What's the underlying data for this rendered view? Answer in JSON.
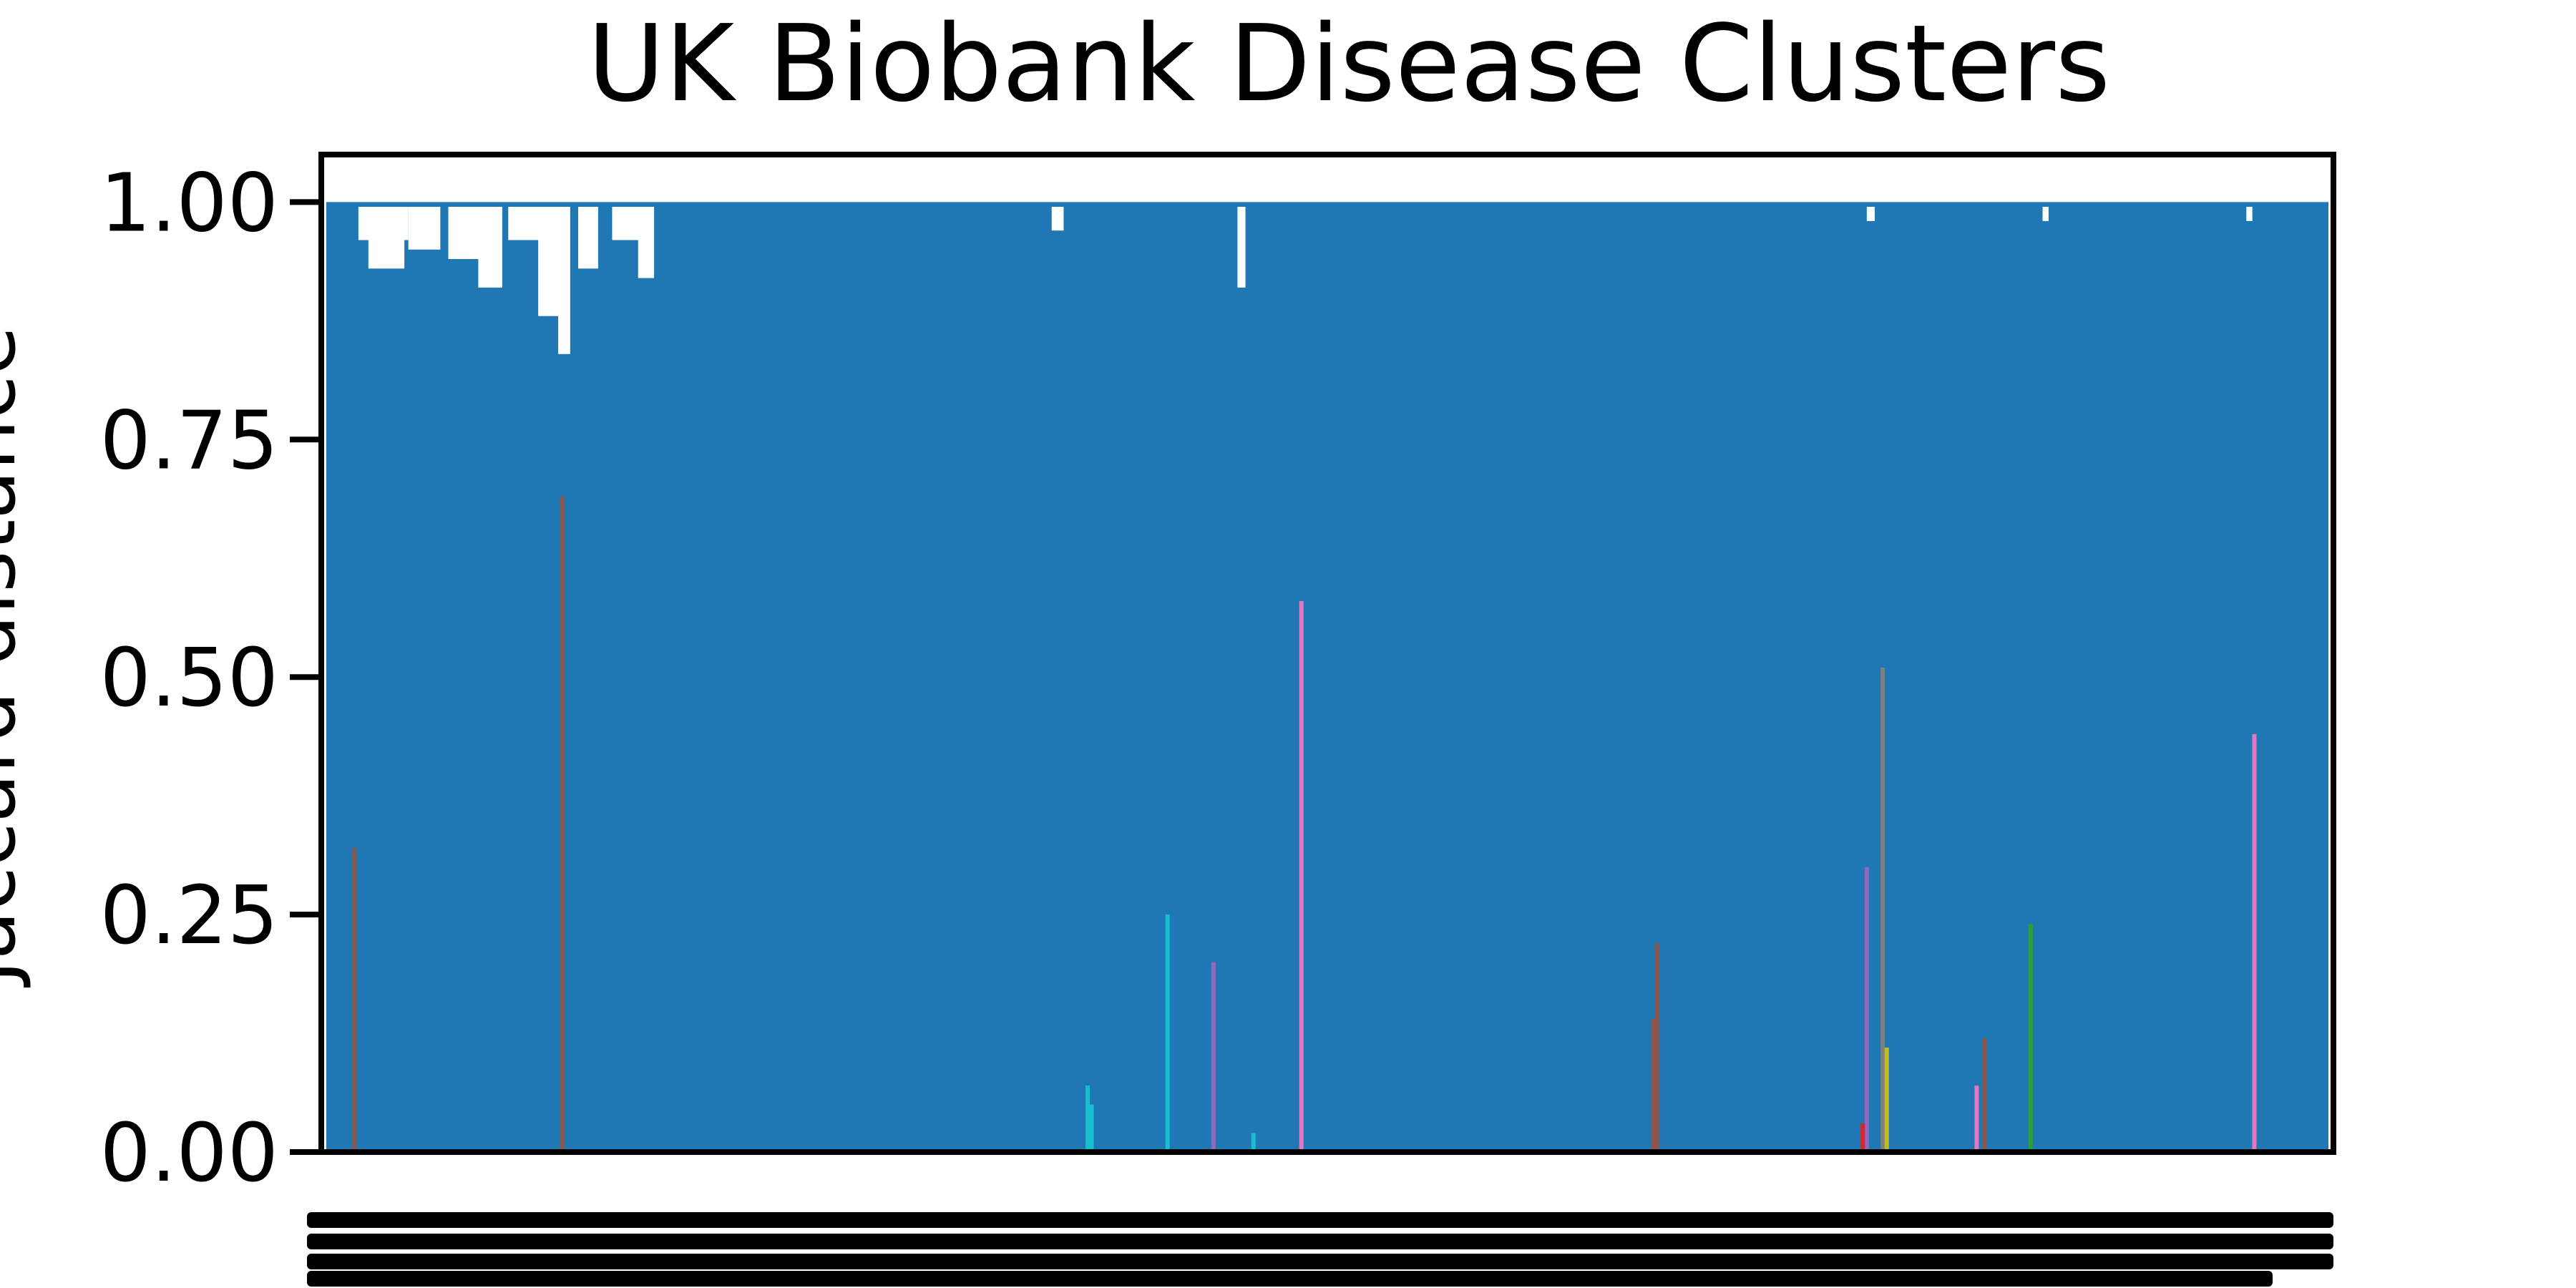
{
  "chart_data": {
    "type": "dendrogram",
    "title": "UK Biobank Disease Clusters",
    "ylabel": "Jaccard distance",
    "xlabel": "",
    "ylim": [
      0.0,
      1.05
    ],
    "yticks": [
      0.0,
      0.25,
      0.5,
      0.75,
      1.0
    ],
    "ytick_labels": [
      "0.00",
      "0.25",
      "0.50",
      "0.75",
      "1.00"
    ],
    "above_threshold_color": "#1f77b4",
    "top_merge_height": 1.0,
    "x_leaf_span": [
      0,
      1
    ],
    "colored_clusters": [
      {
        "x": 0.013,
        "height": 0.32,
        "color": "#8c564b"
      },
      {
        "x": 0.117,
        "height": 0.69,
        "color": "#8c564b"
      },
      {
        "x": 0.38,
        "height": 0.07,
        "color": "#17becf"
      },
      {
        "x": 0.382,
        "height": 0.05,
        "color": "#17becf"
      },
      {
        "x": 0.42,
        "height": 0.25,
        "color": "#17becf"
      },
      {
        "x": 0.443,
        "height": 0.2,
        "color": "#9467bd"
      },
      {
        "x": 0.463,
        "height": 0.02,
        "color": "#17becf"
      },
      {
        "x": 0.487,
        "height": 0.58,
        "color": "#e377c2"
      },
      {
        "x": 0.663,
        "height": 0.14,
        "color": "#8c564b"
      },
      {
        "x": 0.665,
        "height": 0.22,
        "color": "#8c564b"
      },
      {
        "x": 0.77,
        "height": 0.3,
        "color": "#9467bd"
      },
      {
        "x": 0.768,
        "height": 0.03,
        "color": "#d62728"
      },
      {
        "x": 0.778,
        "height": 0.51,
        "color": "#7f7f7f"
      },
      {
        "x": 0.78,
        "height": 0.11,
        "color": "#bcbd22"
      },
      {
        "x": 0.825,
        "height": 0.07,
        "color": "#e377c2"
      },
      {
        "x": 0.829,
        "height": 0.12,
        "color": "#8c564b"
      },
      {
        "x": 0.852,
        "height": 0.24,
        "color": "#2ca02c"
      },
      {
        "x": 0.964,
        "height": 0.44,
        "color": "#e377c2"
      }
    ],
    "grid": false,
    "legend": "none"
  }
}
